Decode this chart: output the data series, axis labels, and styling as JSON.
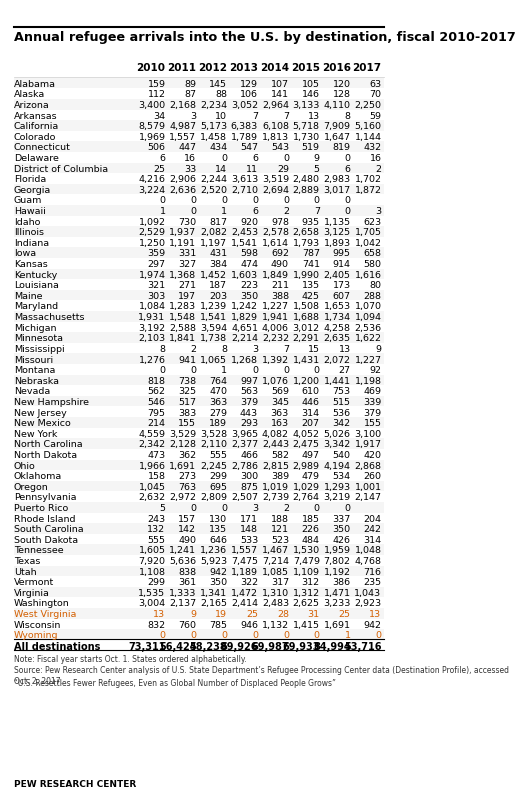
{
  "title": "Annual refugee arrivals into the U.S. by destination, fiscal 2010-2017",
  "years": [
    "2010",
    "2011",
    "2012",
    "2013",
    "2014",
    "2015",
    "2016",
    "2017"
  ],
  "states": [
    "Alabama",
    "Alaska",
    "Arizona",
    "Arkansas",
    "California",
    "Colorado",
    "Connecticut",
    "Delaware",
    "District of Columbia",
    "Florida",
    "Georgia",
    "Guam",
    "Hawaii",
    "Idaho",
    "Illinois",
    "Indiana",
    "Iowa",
    "Kansas",
    "Kentucky",
    "Louisiana",
    "Maine",
    "Maryland",
    "Massachusetts",
    "Michigan",
    "Minnesota",
    "Mississippi",
    "Missouri",
    "Montana",
    "Nebraska",
    "Nevada",
    "New Hampshire",
    "New Jersey",
    "New Mexico",
    "New York",
    "North Carolina",
    "North Dakota",
    "Ohio",
    "Oklahoma",
    "Oregon",
    "Pennsylvania",
    "Puerto Rico",
    "Rhode Island",
    "South Carolina",
    "South Dakota",
    "Tennessee",
    "Texas",
    "Utah",
    "Vermont",
    "Virginia",
    "Washington",
    "West Virginia",
    "Wisconsin",
    "Wyoming",
    "All destinations"
  ],
  "data": [
    [
      159,
      89,
      145,
      129,
      107,
      105,
      120,
      63
    ],
    [
      112,
      87,
      88,
      106,
      141,
      146,
      128,
      70
    ],
    [
      3400,
      2168,
      2234,
      3052,
      2964,
      3133,
      4110,
      2250
    ],
    [
      34,
      3,
      10,
      7,
      7,
      13,
      8,
      59
    ],
    [
      8579,
      4987,
      5173,
      6383,
      6108,
      5718,
      7909,
      5160
    ],
    [
      1969,
      1557,
      1458,
      1789,
      1813,
      1730,
      1647,
      1144
    ],
    [
      506,
      447,
      434,
      547,
      543,
      519,
      819,
      432
    ],
    [
      6,
      16,
      0,
      6,
      0,
      9,
      0,
      16
    ],
    [
      25,
      33,
      14,
      11,
      29,
      5,
      6,
      2
    ],
    [
      4216,
      2906,
      2244,
      3613,
      3519,
      2480,
      2983,
      1702
    ],
    [
      3224,
      2636,
      2520,
      2710,
      2694,
      2889,
      3017,
      1872
    ],
    [
      0,
      0,
      0,
      0,
      0,
      0,
      0,
      null
    ],
    [
      1,
      0,
      1,
      6,
      2,
      7,
      0,
      3
    ],
    [
      1092,
      730,
      817,
      920,
      978,
      935,
      1135,
      623
    ],
    [
      2529,
      1937,
      2082,
      2453,
      2578,
      2658,
      3125,
      1705
    ],
    [
      1250,
      1191,
      1197,
      1541,
      1614,
      1793,
      1893,
      1042
    ],
    [
      359,
      331,
      431,
      598,
      692,
      787,
      995,
      658
    ],
    [
      297,
      327,
      384,
      474,
      490,
      741,
      914,
      580
    ],
    [
      1974,
      1368,
      1452,
      1603,
      1849,
      1990,
      2405,
      1616
    ],
    [
      321,
      271,
      187,
      223,
      211,
      135,
      173,
      80
    ],
    [
      303,
      197,
      203,
      350,
      388,
      425,
      607,
      288
    ],
    [
      1084,
      1283,
      1239,
      1242,
      1227,
      1508,
      1653,
      1070
    ],
    [
      1931,
      1548,
      1541,
      1829,
      1941,
      1688,
      1734,
      1094
    ],
    [
      3192,
      2588,
      3594,
      4651,
      4006,
      3012,
      4258,
      2536
    ],
    [
      2103,
      1841,
      1738,
      2214,
      2232,
      2291,
      2635,
      1622
    ],
    [
      8,
      2,
      8,
      3,
      7,
      15,
      13,
      9
    ],
    [
      1276,
      941,
      1065,
      1268,
      1392,
      1431,
      2072,
      1227
    ],
    [
      0,
      0,
      1,
      0,
      0,
      0,
      27,
      92
    ],
    [
      818,
      738,
      764,
      997,
      1076,
      1200,
      1441,
      1198
    ],
    [
      562,
      325,
      470,
      563,
      569,
      610,
      753,
      469
    ],
    [
      546,
      517,
      363,
      379,
      345,
      446,
      515,
      339
    ],
    [
      795,
      383,
      279,
      443,
      363,
      314,
      536,
      379
    ],
    [
      214,
      155,
      189,
      293,
      163,
      207,
      342,
      155
    ],
    [
      4559,
      3529,
      3528,
      3965,
      4082,
      4052,
      5026,
      3100
    ],
    [
      2342,
      2128,
      2110,
      2377,
      2443,
      2475,
      3342,
      1917
    ],
    [
      473,
      362,
      555,
      466,
      582,
      497,
      540,
      420
    ],
    [
      1966,
      1691,
      2245,
      2786,
      2815,
      2989,
      4194,
      2868
    ],
    [
      158,
      273,
      299,
      300,
      389,
      479,
      534,
      260
    ],
    [
      1045,
      763,
      695,
      875,
      1019,
      1029,
      1293,
      1001
    ],
    [
      2632,
      2972,
      2809,
      2507,
      2739,
      2764,
      3219,
      2147
    ],
    [
      5,
      0,
      0,
      3,
      2,
      0,
      0,
      null
    ],
    [
      243,
      157,
      130,
      171,
      188,
      185,
      337,
      204
    ],
    [
      132,
      142,
      135,
      148,
      121,
      226,
      350,
      242
    ],
    [
      555,
      490,
      646,
      533,
      523,
      484,
      426,
      314
    ],
    [
      1605,
      1241,
      1236,
      1557,
      1467,
      1530,
      1959,
      1048
    ],
    [
      7920,
      5636,
      5923,
      7475,
      7214,
      7479,
      7802,
      4768
    ],
    [
      1108,
      838,
      942,
      1189,
      1085,
      1109,
      1192,
      716
    ],
    [
      299,
      361,
      350,
      322,
      317,
      312,
      386,
      235
    ],
    [
      1535,
      1333,
      1341,
      1472,
      1310,
      1312,
      1471,
      1043
    ],
    [
      3004,
      2137,
      2165,
      2414,
      2483,
      2625,
      3233,
      2923
    ],
    [
      13,
      9,
      19,
      25,
      28,
      31,
      25,
      13
    ],
    [
      832,
      760,
      785,
      946,
      1132,
      1415,
      1691,
      942
    ],
    [
      0,
      0,
      0,
      0,
      0,
      0,
      1,
      0
    ],
    [
      73311,
      56424,
      58238,
      69926,
      69987,
      69933,
      84994,
      53716
    ]
  ],
  "bold_rows": [
    "All destinations"
  ],
  "orange_rows": [
    "West Virginia",
    "Wyoming"
  ],
  "note_line1": "Note: Fiscal year starts Oct. 1. States ordered alphabetically.",
  "note_line2": "Source: Pew Research Center analysis of U.S. State Department’s Refugee Processing Center data (Destination Profile), accessed Oct. 2, 2017.",
  "note_line3": "“U.S. Resettles Fewer Refugees, Even as Global Number of Displaced People Grows”",
  "footer": "PEW RESEARCH CENTER",
  "bg_color": "#ffffff",
  "header_color": "#000000",
  "text_color": "#000000",
  "orange_color": "#d45f00",
  "separator_color": "#cccccc",
  "bottom_line_color": "#000000"
}
